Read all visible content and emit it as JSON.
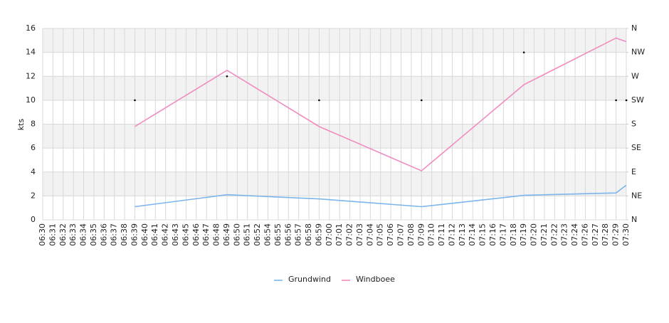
{
  "chart_data": {
    "type": "line",
    "y_label": "kts",
    "categories": [
      "06:30",
      "06:31",
      "06:32",
      "06:33",
      "06:34",
      "06:35",
      "06:36",
      "06:37",
      "06:38",
      "06:39",
      "06:40",
      "06:41",
      "06:42",
      "06:43",
      "06:45",
      "06:46",
      "06:47",
      "06:48",
      "06:49",
      "06:50",
      "06:51",
      "06:52",
      "06:54",
      "06:55",
      "06:56",
      "06:57",
      "06:58",
      "06:59",
      "07:00",
      "07:01",
      "07:02",
      "07:03",
      "07:04",
      "07:05",
      "07:06",
      "07:07",
      "07:08",
      "07:09",
      "07:10",
      "07:11",
      "07:12",
      "07:13",
      "07:14",
      "07:15",
      "07:16",
      "07:17",
      "07:18",
      "07:19",
      "07:20",
      "07:21",
      "07:22",
      "07:23",
      "07:24",
      "07:26",
      "07:27",
      "07:28",
      "07:29",
      "07:30"
    ],
    "ylim": [
      0,
      16
    ],
    "yticks": [
      0,
      2,
      4,
      6,
      8,
      10,
      12,
      14,
      16
    ],
    "y2lim": [
      0,
      360
    ],
    "y2ticks": [
      {
        "value": 0,
        "label": "N"
      },
      {
        "value": 45,
        "label": "NE"
      },
      {
        "value": 90,
        "label": "E"
      },
      {
        "value": 135,
        "label": "SE"
      },
      {
        "value": 180,
        "label": "S"
      },
      {
        "value": 225,
        "label": "SW"
      },
      {
        "value": 270,
        "label": "W"
      },
      {
        "value": 315,
        "label": "NW"
      },
      {
        "value": 360,
        "label": "N"
      }
    ],
    "grid": true,
    "series": [
      {
        "name": "Grundwind",
        "color": "#7cb5ec",
        "x": [
          "06:39",
          "06:49",
          "06:59",
          "07:09",
          "07:19",
          "07:29",
          "07:30"
        ],
        "values": [
          1.1,
          2.1,
          1.75,
          1.1,
          2.05,
          2.25,
          2.9
        ]
      },
      {
        "name": "Windboee",
        "color": "#f08cc0",
        "x": [
          "06:39",
          "06:49",
          "06:59",
          "07:09",
          "07:19",
          "07:29",
          "07:30"
        ],
        "values": [
          7.8,
          12.5,
          7.8,
          4.1,
          11.3,
          15.2,
          14.9
        ]
      },
      {
        "color": "#000000",
        "axis": "y2",
        "x": [
          "06:39",
          "06:49",
          "06:59",
          "07:09",
          "07:19",
          "07:29",
          "07:30"
        ],
        "values": [
          225,
          270,
          225,
          225,
          315,
          225,
          225
        ]
      }
    ]
  }
}
